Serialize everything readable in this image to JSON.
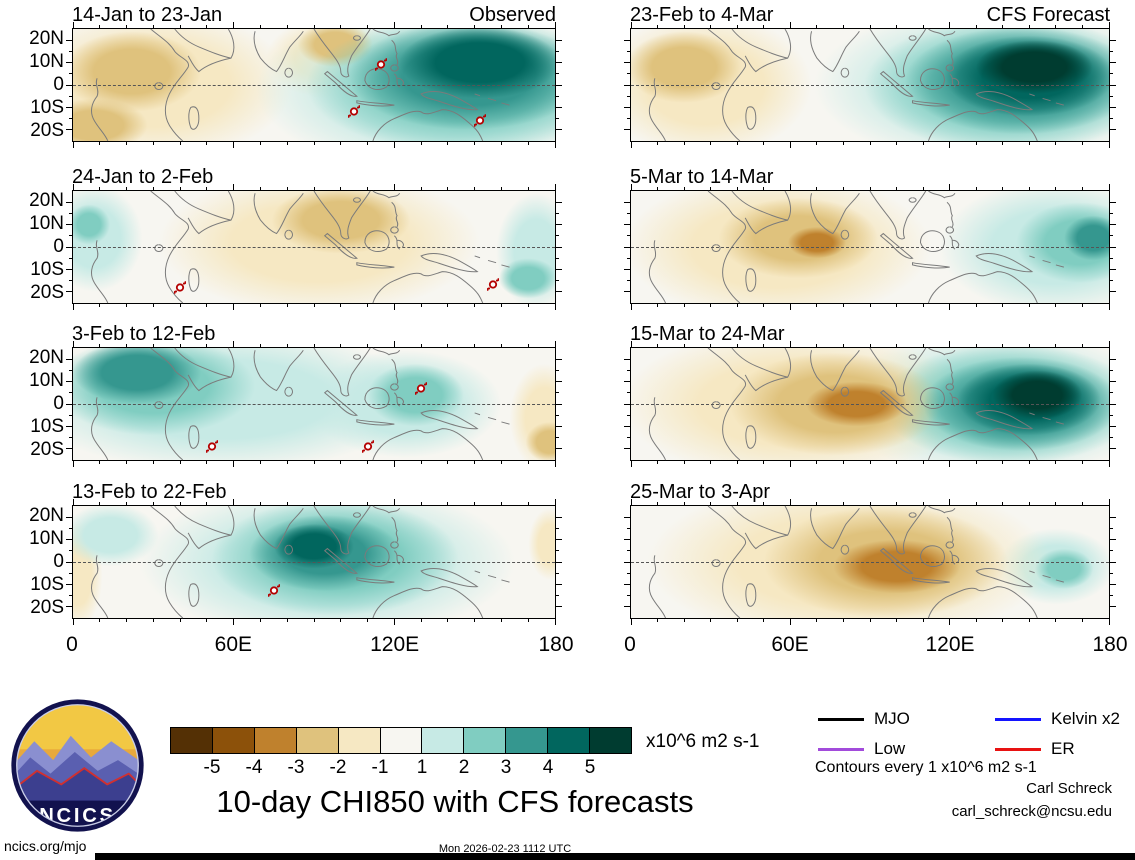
{
  "title": "10-day CHI850 with CFS forecasts",
  "logo": {
    "text": "NCICS"
  },
  "legend": {
    "items": [
      {
        "label": "MJO",
        "color": "#000000"
      },
      {
        "label": "Kelvin x2",
        "color": "#1414ff"
      },
      {
        "label": "Low",
        "color": "#a24bdb"
      },
      {
        "label": "ER",
        "color": "#e81212"
      }
    ],
    "note": "Contours every 1 x10^6 m2 s-1"
  },
  "credits": {
    "author": "Carl Schreck",
    "email": "carl_schreck@ncsu.edu",
    "site": "ncics.org/mjo",
    "timestamp": "Mon 2026-02-23 1112 UTC"
  },
  "chart_data": {
    "type": "heatmap",
    "subtype": "filled-contour longitude-latitude anomaly maps of 850 hPa velocity potential (CHI850)",
    "units": "x10^6 m2 s-1",
    "x_ticks": [
      "0",
      "60E",
      "120E",
      "180"
    ],
    "y_ticks": [
      "20N",
      "10N",
      "0",
      "10S",
      "20S"
    ],
    "lon_range_deg": [
      0,
      180
    ],
    "lat_range_deg": [
      -25,
      25
    ],
    "map_background": "#f7f6f1",
    "colorbar": {
      "tick_labels": [
        "-5",
        "-4",
        "-3",
        "-2",
        "-1",
        "1",
        "2",
        "3",
        "4",
        "5"
      ],
      "colors": [
        "#543005",
        "#8c510a",
        "#bf812d",
        "#dfc27d",
        "#f6e8c3",
        "#f7f6f1",
        "#c7eae5",
        "#80cdc1",
        "#35978f",
        "#01665e",
        "#003c30"
      ],
      "units_label": "x10^6 m2 s-1"
    },
    "band_colors": {
      "-5": "#543005",
      "-4": "#8c510a",
      "-3": "#bf812d",
      "-2": "#dfc27d",
      "-1": "#f6e8c3",
      "1": "#c7eae5",
      "2": "#80cdc1",
      "3": "#35978f",
      "4": "#01665e",
      "5": "#003c30"
    },
    "panels": [
      {
        "title": "14-Jan to 23-Jan",
        "corner_label": "Observed",
        "column": "observed",
        "anomaly_centers": [
          {
            "lon": 152,
            "lat": 10,
            "half_width_deg": 30,
            "half_height_deg": 16,
            "band": 4
          },
          {
            "lon": 148,
            "lat": 4,
            "half_width_deg": 45,
            "half_height_deg": 24,
            "band": 3
          },
          {
            "lon": 145,
            "lat": 0,
            "half_width_deg": 58,
            "half_height_deg": 30,
            "band": 2
          },
          {
            "lon": 140,
            "lat": -2,
            "half_width_deg": 72,
            "half_height_deg": 38,
            "band": 1
          },
          {
            "lon": 22,
            "lat": 6,
            "half_width_deg": 26,
            "half_height_deg": 18,
            "band": -2
          },
          {
            "lon": 30,
            "lat": 0,
            "half_width_deg": 52,
            "half_height_deg": 34,
            "band": -1
          },
          {
            "lon": 98,
            "lat": 18,
            "half_width_deg": 14,
            "half_height_deg": 10,
            "band": -2
          },
          {
            "lon": 96,
            "lat": 12,
            "half_width_deg": 24,
            "half_height_deg": 18,
            "band": -1
          },
          {
            "lon": 8,
            "lat": -18,
            "half_width_deg": 20,
            "half_height_deg": 12,
            "band": -2
          }
        ],
        "cyclone_markers": [
          {
            "lon": 115,
            "lat": 8
          },
          {
            "lon": 105,
            "lat": -13
          },
          {
            "lon": 152,
            "lat": -17
          }
        ]
      },
      {
        "title": "24-Jan to 2-Feb",
        "corner_label": "",
        "column": "observed",
        "anomaly_centers": [
          {
            "lon": 8,
            "lat": 4,
            "half_width_deg": 18,
            "half_height_deg": 24,
            "band": 1
          },
          {
            "lon": 6,
            "lat": 10,
            "half_width_deg": 8,
            "half_height_deg": 9,
            "band": 2
          },
          {
            "lon": 100,
            "lat": 12,
            "half_width_deg": 26,
            "half_height_deg": 15,
            "band": -2
          },
          {
            "lon": 92,
            "lat": 2,
            "half_width_deg": 60,
            "half_height_deg": 32,
            "band": -1
          },
          {
            "lon": 173,
            "lat": -2,
            "half_width_deg": 15,
            "half_height_deg": 26,
            "band": 1
          },
          {
            "lon": 170,
            "lat": -14,
            "half_width_deg": 11,
            "half_height_deg": 9,
            "band": 2
          }
        ],
        "cyclone_markers": [
          {
            "lon": 40,
            "lat": -19
          },
          {
            "lon": 157,
            "lat": -18
          }
        ]
      },
      {
        "title": "3-Feb to 12-Feb",
        "corner_label": "",
        "column": "observed",
        "anomaly_centers": [
          {
            "lon": 24,
            "lat": 14,
            "half_width_deg": 24,
            "half_height_deg": 14,
            "band": 3
          },
          {
            "lon": 30,
            "lat": 8,
            "half_width_deg": 38,
            "half_height_deg": 22,
            "band": 2
          },
          {
            "lon": 55,
            "lat": 2,
            "half_width_deg": 75,
            "half_height_deg": 32,
            "band": 1
          },
          {
            "lon": 128,
            "lat": 4,
            "half_width_deg": 18,
            "half_height_deg": 14,
            "band": 2
          },
          {
            "lon": 124,
            "lat": 0,
            "half_width_deg": 36,
            "half_height_deg": 24,
            "band": 1
          },
          {
            "lon": 176,
            "lat": -6,
            "half_width_deg": 13,
            "half_height_deg": 24,
            "band": -1
          },
          {
            "lon": 178,
            "lat": -17,
            "half_width_deg": 9,
            "half_height_deg": 9,
            "band": -2
          }
        ],
        "cyclone_markers": [
          {
            "lon": 130,
            "lat": 6
          },
          {
            "lon": 52,
            "lat": -20
          },
          {
            "lon": 110,
            "lat": -20
          }
        ]
      },
      {
        "title": "13-Feb to 22-Feb",
        "corner_label": "",
        "column": "observed",
        "anomaly_centers": [
          {
            "lon": 90,
            "lat": 7,
            "half_width_deg": 15,
            "half_height_deg": 10,
            "band": 4
          },
          {
            "lon": 94,
            "lat": 4,
            "half_width_deg": 28,
            "half_height_deg": 17,
            "band": 3
          },
          {
            "lon": 98,
            "lat": 2,
            "half_width_deg": 46,
            "half_height_deg": 26,
            "band": 2
          },
          {
            "lon": 95,
            "lat": 0,
            "half_width_deg": 70,
            "half_height_deg": 35,
            "band": 1
          },
          {
            "lon": 14,
            "lat": 12,
            "half_width_deg": 18,
            "half_height_deg": 14,
            "band": 1
          },
          {
            "lon": 2,
            "lat": -6,
            "half_width_deg": 9,
            "half_height_deg": 24,
            "band": -1
          },
          {
            "lon": 178,
            "lat": 8,
            "half_width_deg": 8,
            "half_height_deg": 16,
            "band": -1
          }
        ],
        "cyclone_markers": [
          {
            "lon": 75,
            "lat": -14
          }
        ]
      },
      {
        "title": "23-Feb to 4-Mar",
        "corner_label": "CFS Forecast",
        "column": "forecast",
        "anomaly_centers": [
          {
            "lon": 20,
            "lat": 8,
            "half_width_deg": 22,
            "half_height_deg": 16,
            "band": -2
          },
          {
            "lon": 28,
            "lat": 0,
            "half_width_deg": 40,
            "half_height_deg": 32,
            "band": -1
          },
          {
            "lon": 152,
            "lat": 8,
            "half_width_deg": 22,
            "half_height_deg": 12,
            "band": 5
          },
          {
            "lon": 150,
            "lat": 4,
            "half_width_deg": 32,
            "half_height_deg": 18,
            "band": 4
          },
          {
            "lon": 147,
            "lat": 2,
            "half_width_deg": 44,
            "half_height_deg": 24,
            "band": 3
          },
          {
            "lon": 143,
            "lat": 0,
            "half_width_deg": 55,
            "half_height_deg": 30,
            "band": 2
          },
          {
            "lon": 137,
            "lat": 0,
            "half_width_deg": 68,
            "half_height_deg": 36,
            "band": 1
          }
        ],
        "cyclone_markers": []
      },
      {
        "title": "5-Mar to 14-Mar",
        "corner_label": "",
        "column": "forecast",
        "anomaly_centers": [
          {
            "lon": 70,
            "lat": 2,
            "half_width_deg": 11,
            "half_height_deg": 7,
            "band": -3
          },
          {
            "lon": 63,
            "lat": 4,
            "half_width_deg": 30,
            "half_height_deg": 18,
            "band": -2
          },
          {
            "lon": 55,
            "lat": 0,
            "half_width_deg": 58,
            "half_height_deg": 33,
            "band": -1
          },
          {
            "lon": 174,
            "lat": 4,
            "half_width_deg": 11,
            "half_height_deg": 10,
            "band": 3
          },
          {
            "lon": 169,
            "lat": 2,
            "half_width_deg": 24,
            "half_height_deg": 18,
            "band": 2
          },
          {
            "lon": 160,
            "lat": 0,
            "half_width_deg": 44,
            "half_height_deg": 30,
            "band": 1
          }
        ],
        "cyclone_markers": []
      },
      {
        "title": "15-Mar to 24-Mar",
        "corner_label": "",
        "column": "forecast",
        "anomaly_centers": [
          {
            "lon": 85,
            "lat": 0,
            "half_width_deg": 19,
            "half_height_deg": 10,
            "band": -3
          },
          {
            "lon": 77,
            "lat": 0,
            "half_width_deg": 40,
            "half_height_deg": 23,
            "band": -2
          },
          {
            "lon": 62,
            "lat": 0,
            "half_width_deg": 66,
            "half_height_deg": 34,
            "band": -1
          },
          {
            "lon": 153,
            "lat": 4,
            "half_width_deg": 17,
            "half_height_deg": 11,
            "band": 5
          },
          {
            "lon": 150,
            "lat": 2,
            "half_width_deg": 27,
            "half_height_deg": 16,
            "band": 4
          },
          {
            "lon": 147,
            "lat": 0,
            "half_width_deg": 37,
            "half_height_deg": 21,
            "band": 3
          },
          {
            "lon": 143,
            "lat": 0,
            "half_width_deg": 49,
            "half_height_deg": 27,
            "band": 2
          },
          {
            "lon": 138,
            "lat": 0,
            "half_width_deg": 62,
            "half_height_deg": 33,
            "band": 1
          }
        ],
        "cyclone_markers": []
      },
      {
        "title": "25-Mar to 3-Apr",
        "corner_label": "",
        "column": "forecast",
        "anomaly_centers": [
          {
            "lon": 100,
            "lat": -2,
            "half_width_deg": 24,
            "half_height_deg": 12,
            "band": -3
          },
          {
            "lon": 96,
            "lat": 0,
            "half_width_deg": 46,
            "half_height_deg": 25,
            "band": -2
          },
          {
            "lon": 82,
            "lat": 0,
            "half_width_deg": 76,
            "half_height_deg": 37,
            "band": -1
          },
          {
            "lon": 163,
            "lat": -3,
            "half_width_deg": 11,
            "half_height_deg": 9,
            "band": 2
          },
          {
            "lon": 160,
            "lat": -2,
            "half_width_deg": 22,
            "half_height_deg": 17,
            "band": 1
          }
        ],
        "cyclone_markers": []
      }
    ]
  }
}
